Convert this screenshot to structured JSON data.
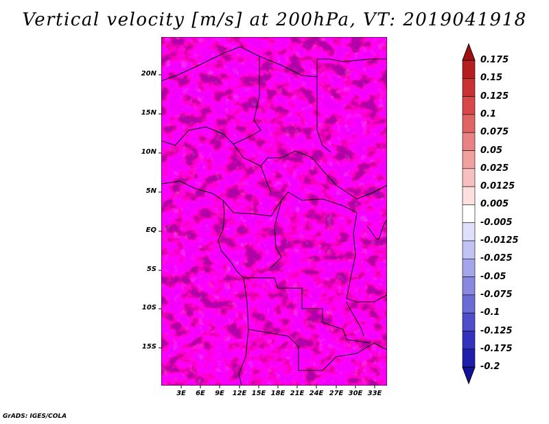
{
  "title": "Vertical velocity [m/s] at 200hPa, VT: 2019041918",
  "credit": "GrADS: IGES/COLA",
  "map": {
    "lat_labels": [
      "20N",
      "15N",
      "10N",
      "5N",
      "EQ",
      "5S",
      "10S",
      "15S"
    ],
    "lon_labels": [
      "3E",
      "6E",
      "9E",
      "12E",
      "15E",
      "18E",
      "21E",
      "24E",
      "27E",
      "30E",
      "33E"
    ]
  },
  "colorbar": {
    "labels": [
      "0.175",
      "0.15",
      "0.125",
      "0.1",
      "0.075",
      "0.05",
      "0.025",
      "0.0125",
      "0.005",
      "-0.005",
      "-0.0125",
      "-0.025",
      "-0.05",
      "-0.075",
      "-0.1",
      "-0.125",
      "-0.175",
      "-0.2"
    ],
    "colors": [
      "#a01010",
      "#b41e1e",
      "#c83232",
      "#d74848",
      "#e06464",
      "#e98282",
      "#f1a0a0",
      "#f7c0c0",
      "#fce0e0",
      "#ffffff",
      "#e0e0fb",
      "#c3c3f3",
      "#a5a5ea",
      "#8888e0",
      "#6b6bd6",
      "#4e4ecb",
      "#3232bd",
      "#1e1eaa",
      "#12129a"
    ]
  }
}
